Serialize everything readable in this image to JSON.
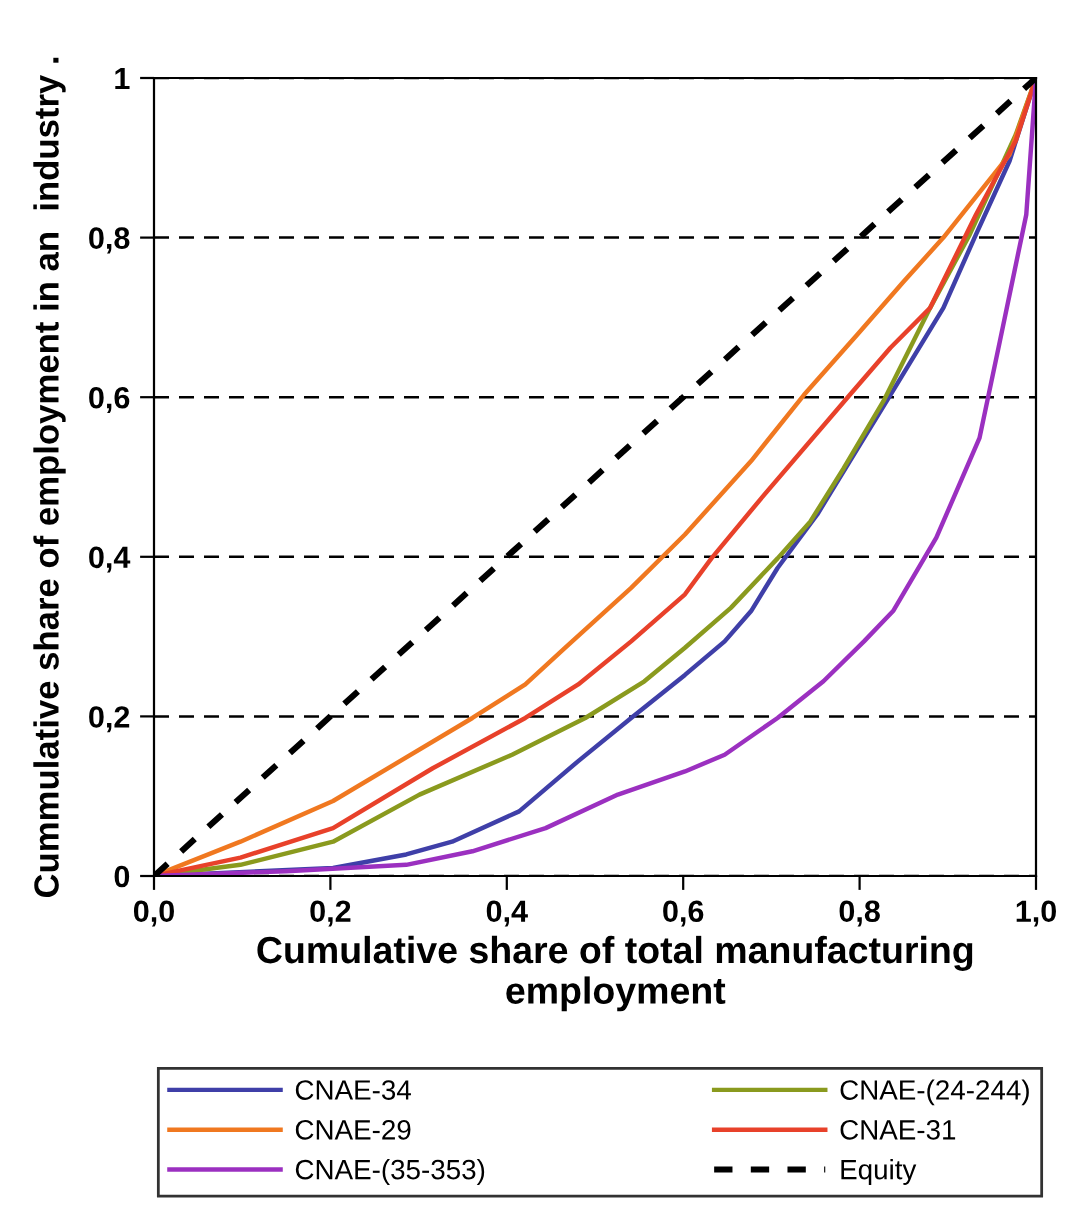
{
  "chart_data": {
    "type": "line",
    "xlabel": "Cumulative share of total manufacturing employment",
    "ylabel": "Cummulative share of employment in an  industry .",
    "xlim": [
      0,
      1
    ],
    "ylim": [
      0,
      1
    ],
    "xticks": [
      {
        "value": 0,
        "label": "0,0"
      },
      {
        "value": 0.2,
        "label": "0,2"
      },
      {
        "value": 0.4,
        "label": "0,4"
      },
      {
        "value": 0.6,
        "label": "0,6"
      },
      {
        "value": 0.8,
        "label": "0,8"
      },
      {
        "value": 1,
        "label": "1,0"
      }
    ],
    "yticks": [
      {
        "value": 0,
        "label": "0"
      },
      {
        "value": 0.2,
        "label": "0,2"
      },
      {
        "value": 0.4,
        "label": "0,4"
      },
      {
        "value": 0.6,
        "label": "0,6"
      },
      {
        "value": 0.8,
        "label": "0,8"
      },
      {
        "value": 1,
        "label": "1"
      }
    ],
    "grid": "y",
    "legend": "bottom",
    "marker": "none",
    "series": [
      {
        "name": "CNAE-34",
        "color": "#3f3fa8",
        "line_style": "solid",
        "x": [
          0,
          0.203,
          0.286,
          0.338,
          0.414,
          0.481,
          0.541,
          0.602,
          0.647,
          0.677,
          0.707,
          0.752,
          0.789,
          0.835,
          0.895,
          0.932,
          0.97,
          1
        ],
        "values": [
          0,
          0.01,
          0.027,
          0.043,
          0.081,
          0.144,
          0.198,
          0.252,
          0.294,
          0.332,
          0.386,
          0.453,
          0.52,
          0.603,
          0.712,
          0.804,
          0.896,
          1
        ]
      },
      {
        "name": "CNAE-(24-244)",
        "color": "#8a9a1e",
        "line_style": "solid",
        "x": [
          0,
          0.098,
          0.203,
          0.301,
          0.406,
          0.489,
          0.556,
          0.602,
          0.654,
          0.707,
          0.744,
          0.782,
          0.827,
          0.88,
          0.925,
          0.977,
          1
        ],
        "values": [
          0,
          0.014,
          0.043,
          0.102,
          0.152,
          0.198,
          0.244,
          0.286,
          0.336,
          0.398,
          0.444,
          0.511,
          0.595,
          0.712,
          0.804,
          0.929,
          1
        ]
      },
      {
        "name": "CNAE-29",
        "color": "#f07820",
        "line_style": "solid",
        "x": [
          0,
          0.098,
          0.203,
          0.361,
          0.421,
          0.466,
          0.541,
          0.602,
          0.677,
          0.737,
          0.797,
          0.85,
          0.895,
          0.97,
          1
        ],
        "values": [
          0,
          0.043,
          0.094,
          0.198,
          0.24,
          0.286,
          0.361,
          0.428,
          0.52,
          0.603,
          0.678,
          0.745,
          0.8,
          0.904,
          1
        ]
      },
      {
        "name": "CNAE-31",
        "color": "#e8412a",
        "line_style": "solid",
        "x": [
          0,
          0.098,
          0.203,
          0.316,
          0.421,
          0.481,
          0.541,
          0.602,
          0.632,
          0.692,
          0.789,
          0.835,
          0.88,
          0.932,
          0.977,
          1
        ],
        "values": [
          0,
          0.023,
          0.06,
          0.135,
          0.198,
          0.24,
          0.294,
          0.353,
          0.398,
          0.478,
          0.603,
          0.662,
          0.712,
          0.829,
          0.921,
          1
        ]
      },
      {
        "name": "CNAE-(35-353)",
        "color": "#9b30c0",
        "line_style": "solid",
        "x": [
          0,
          0.15,
          0.286,
          0.361,
          0.444,
          0.526,
          0.602,
          0.647,
          0.707,
          0.759,
          0.805,
          0.838,
          0.887,
          0.936,
          0.959,
          0.989,
          1
        ],
        "values": [
          0,
          0.006,
          0.014,
          0.031,
          0.06,
          0.102,
          0.131,
          0.152,
          0.198,
          0.244,
          0.294,
          0.332,
          0.424,
          0.549,
          0.67,
          0.829,
          1
        ]
      },
      {
        "name": "Equity",
        "color": "#000000",
        "line_style": "dashed",
        "x": [
          0,
          1
        ],
        "values": [
          0,
          1
        ]
      }
    ]
  }
}
